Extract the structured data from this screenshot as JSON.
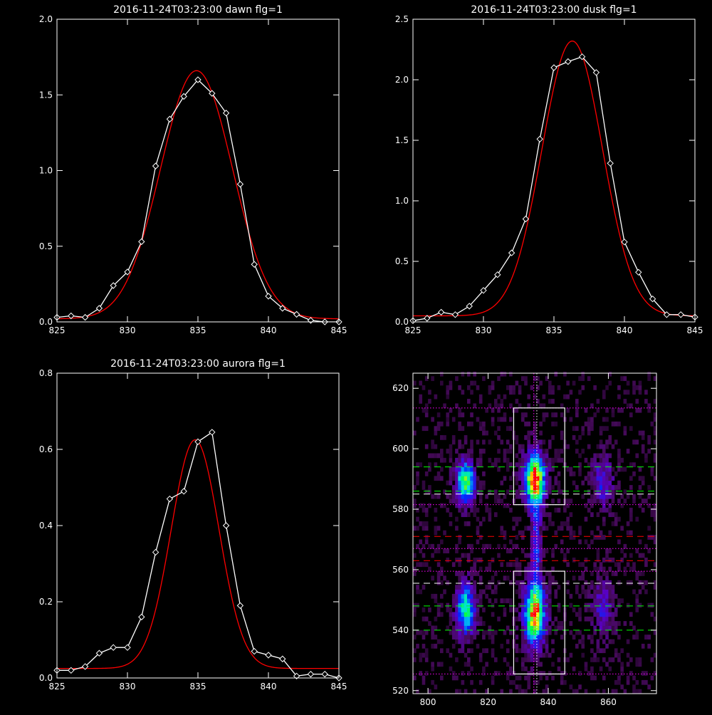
{
  "chart_data": [
    {
      "type": "line",
      "title": "2016-11-24T03:23:00 dawn flg=1",
      "xlim": [
        825,
        845
      ],
      "ylim": [
        0,
        2.0
      ],
      "xticks": [
        "825",
        "830",
        "835",
        "840",
        "845"
      ],
      "yticks": [
        "0.0",
        "0.5",
        "1.0",
        "1.5",
        "2.0"
      ],
      "series": [
        {
          "kind": "data",
          "color": "#ffffff",
          "marker": "diamond",
          "x": [
            825,
            826,
            827,
            828,
            829,
            830,
            831,
            832,
            833,
            834,
            835,
            836,
            837,
            838,
            839,
            840,
            841,
            842,
            843,
            844,
            845
          ],
          "y": [
            0.03,
            0.04,
            0.03,
            0.09,
            0.24,
            0.33,
            0.53,
            1.03,
            1.34,
            1.49,
            1.6,
            1.51,
            1.38,
            0.91,
            0.38,
            0.17,
            0.09,
            0.05,
            0.01,
            0.0,
            0.0
          ]
        },
        {
          "kind": "fit",
          "color": "#ff0000",
          "model": "gaussian",
          "amplitude": 1.64,
          "center": 834.9,
          "sigma": 2.55,
          "offset": 0.02
        }
      ]
    },
    {
      "type": "line",
      "title": "2016-11-24T03:23:00 dusk flg=1",
      "xlim": [
        825,
        845
      ],
      "ylim": [
        0,
        2.5
      ],
      "xticks": [
        "825",
        "830",
        "835",
        "840",
        "845"
      ],
      "yticks": [
        "0.0",
        "0.5",
        "1.0",
        "1.5",
        "2.0",
        "2.5"
      ],
      "series": [
        {
          "kind": "data",
          "color": "#ffffff",
          "marker": "diamond",
          "x": [
            825,
            826,
            827,
            828,
            829,
            830,
            831,
            832,
            833,
            834,
            835,
            836,
            837,
            838,
            839,
            840,
            841,
            842,
            843,
            844,
            845
          ],
          "y": [
            0.01,
            0.03,
            0.08,
            0.06,
            0.13,
            0.26,
            0.39,
            0.57,
            0.85,
            1.51,
            2.1,
            2.15,
            2.19,
            2.06,
            1.31,
            0.66,
            0.41,
            0.19,
            0.06,
            0.06,
            0.04
          ]
        },
        {
          "kind": "fit",
          "color": "#ff0000",
          "model": "gaussian",
          "amplitude": 2.27,
          "center": 836.3,
          "sigma": 2.15,
          "offset": 0.05
        }
      ]
    },
    {
      "type": "line",
      "title": "2016-11-24T03:23:00 aurora flg=1",
      "xlim": [
        825,
        845
      ],
      "ylim": [
        0,
        0.8
      ],
      "xticks": [
        "825",
        "830",
        "835",
        "840",
        "845"
      ],
      "yticks": [
        "0.0",
        "0.2",
        "0.4",
        "0.6",
        "0.8"
      ],
      "series": [
        {
          "kind": "data",
          "color": "#ffffff",
          "marker": "diamond",
          "x": [
            825,
            826,
            827,
            828,
            829,
            830,
            831,
            832,
            833,
            834,
            835,
            836,
            837,
            838,
            839,
            840,
            841,
            842,
            843,
            844,
            845
          ],
          "y": [
            0.02,
            0.02,
            0.03,
            0.065,
            0.08,
            0.08,
            0.16,
            0.33,
            0.47,
            0.49,
            0.62,
            0.645,
            0.4,
            0.19,
            0.07,
            0.06,
            0.05,
            0.005,
            0.01,
            0.01,
            0.0
          ]
        },
        {
          "kind": "fit",
          "color": "#ff0000",
          "model": "gaussian",
          "amplitude": 0.6,
          "center": 834.8,
          "sigma": 1.7,
          "offset": 0.025
        }
      ]
    },
    {
      "type": "heatmap",
      "title": "",
      "xlim": [
        795,
        876
      ],
      "ylim": [
        519,
        625
      ],
      "xticks": [
        "800",
        "820",
        "840",
        "860"
      ],
      "yticks": [
        "520",
        "540",
        "560",
        "580",
        "600",
        "620"
      ],
      "colormap": "rainbow",
      "blobs": [
        {
          "x": 812.5,
          "y": 589,
          "sx": 2.2,
          "sy": 5,
          "amp": 0.8
        },
        {
          "x": 812.5,
          "y": 547,
          "sx": 2.2,
          "sy": 6,
          "amp": 0.7
        },
        {
          "x": 835.5,
          "y": 590,
          "sx": 2.5,
          "sy": 6,
          "amp": 1.0
        },
        {
          "x": 835.5,
          "y": 545,
          "sx": 2.5,
          "sy": 7,
          "amp": 0.95
        },
        {
          "x": 836.0,
          "y": 568,
          "sx": 1.2,
          "sy": 12,
          "amp": 0.4
        },
        {
          "x": 858.0,
          "y": 589,
          "sx": 2.5,
          "sy": 6,
          "amp": 0.35
        },
        {
          "x": 858.0,
          "y": 547,
          "sx": 2.5,
          "sy": 7,
          "amp": 0.3
        }
      ],
      "boxes": [
        {
          "color": "#ffffff",
          "x": [
            828.5,
            845.5
          ],
          "y": [
            581.5,
            613.5
          ]
        },
        {
          "color": "#ffffff",
          "x": [
            828.5,
            845.5
          ],
          "y": [
            525.5,
            559.5
          ]
        }
      ],
      "hlines": [
        {
          "y": 613.5,
          "color": "#ff00ff",
          "style": "dotted"
        },
        {
          "y": 594,
          "color": "#00ff00",
          "style": "dashed"
        },
        {
          "y": 586,
          "color": "#00ff00",
          "style": "dashed"
        },
        {
          "y": 585,
          "color": "#ffffff",
          "style": "dashed"
        },
        {
          "y": 581.5,
          "color": "#ff00ff",
          "style": "dotted"
        },
        {
          "y": 571,
          "color": "#ff0000",
          "style": "dashed"
        },
        {
          "y": 567,
          "color": "#ff00ff",
          "style": "dotted"
        },
        {
          "y": 563,
          "color": "#ff0000",
          "style": "dashed"
        },
        {
          "y": 559.5,
          "color": "#ff00ff",
          "style": "dotted"
        },
        {
          "y": 555.5,
          "color": "#ffffff",
          "style": "dashed"
        },
        {
          "y": 548,
          "color": "#00ff00",
          "style": "dashed"
        },
        {
          "y": 540,
          "color": "#00ff00",
          "style": "dashed"
        },
        {
          "y": 525.5,
          "color": "#ff00ff",
          "style": "dotted"
        }
      ],
      "vlines": [
        {
          "x": 835.2,
          "color": "#ff00ff",
          "style": "dotted"
        },
        {
          "x": 836.2,
          "color": "#ffffff",
          "style": "dotted"
        }
      ]
    }
  ]
}
